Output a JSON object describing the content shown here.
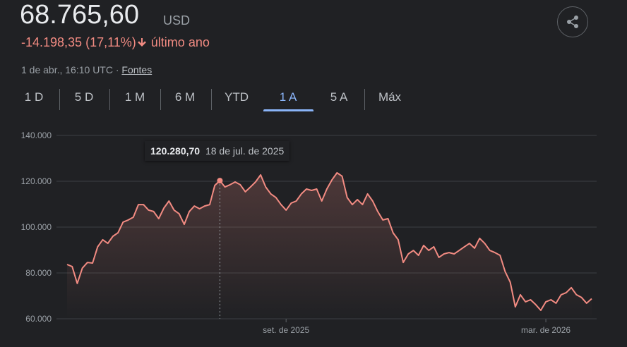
{
  "header": {
    "price": "68.765,60",
    "currency": "USD",
    "change": "-14.198,35 (17,11%)",
    "period": "último ano",
    "timestamp": "1 de abr., 16:10 UTC · ",
    "sources": "Fontes"
  },
  "tabs": {
    "items": [
      "1 D",
      "5 D",
      "1 M",
      "6 M",
      "YTD",
      "1 A",
      "5 A",
      "Máx"
    ],
    "active": "1 A"
  },
  "chart_data": {
    "type": "line",
    "color": "#f28b82",
    "grid": true,
    "annotation": "18 de jul. de 2025",
    "categories": [
      null,
      null,
      null,
      null,
      null,
      null,
      null,
      null,
      null,
      null,
      null,
      null,
      null,
      null,
      null,
      null,
      null,
      null,
      null,
      null,
      null,
      null,
      null,
      null,
      null,
      null,
      null,
      null,
      null,
      null,
      null,
      null,
      null,
      null,
      null,
      null,
      null,
      null,
      null,
      null,
      null,
      null,
      null,
      "set. de 2025",
      null,
      null,
      null,
      null,
      null,
      null,
      null,
      null,
      null,
      null,
      null,
      null,
      null,
      null,
      null,
      null,
      null,
      null,
      null,
      null,
      null,
      null,
      null,
      null,
      null,
      null,
      null,
      null,
      null,
      null,
      null,
      null,
      null,
      null,
      null,
      null,
      null,
      null,
      null,
      null,
      null,
      null,
      null,
      null,
      null,
      null,
      null,
      null,
      null,
      null,
      "mar. de 2026",
      null,
      null,
      null,
      null,
      null,
      null,
      null,
      null,
      null
    ],
    "values": [
      83700,
      82800,
      75400,
      82100,
      84600,
      84300,
      91400,
      94500,
      92900,
      96000,
      97500,
      102200,
      103100,
      104300,
      109800,
      109800,
      107400,
      106800,
      103700,
      108300,
      111400,
      107400,
      105800,
      101200,
      106800,
      109200,
      108000,
      109200,
      109800,
      118200,
      120280.7,
      117500,
      118500,
      119700,
      118500,
      115400,
      117500,
      119700,
      122800,
      117500,
      114500,
      112900,
      109800,
      107400,
      110500,
      111400,
      114500,
      116600,
      116000,
      116600,
      111400,
      116600,
      120600,
      123700,
      122200,
      112900,
      109800,
      112000,
      109800,
      114500,
      111400,
      106800,
      103100,
      103700,
      97500,
      94500,
      84600,
      88300,
      89800,
      87700,
      92000,
      89800,
      91400,
      86800,
      88300,
      88900,
      88300,
      89800,
      91400,
      92900,
      90800,
      95100,
      92900,
      89800,
      88900,
      87700,
      80600,
      76000,
      65200,
      70500,
      67400,
      68300,
      66200,
      63700,
      67400,
      68300,
      66800,
      70500,
      71400,
      73600,
      70500,
      69300,
      66800,
      68765.6
    ],
    "value_labels": [
      null,
      null,
      null,
      null,
      null,
      null,
      null,
      null,
      null,
      null,
      null,
      null,
      null,
      null,
      null,
      null,
      null,
      null,
      null,
      null,
      null,
      null,
      null,
      null,
      null,
      null,
      null,
      null,
      null,
      null,
      "120.280,70",
      null,
      null,
      null,
      null,
      null,
      null,
      null,
      null,
      null,
      null,
      null,
      null,
      null,
      null,
      null,
      null,
      null,
      null,
      null,
      null,
      null,
      null,
      null,
      null,
      null,
      null,
      null,
      null,
      null,
      null,
      null,
      null,
      null,
      null,
      null,
      null,
      null,
      null,
      null,
      null,
      null,
      null,
      null,
      null,
      null,
      null,
      null,
      null,
      null,
      null,
      null,
      null,
      null,
      null,
      null,
      null,
      null,
      null,
      null,
      null,
      null,
      null,
      null,
      null,
      null,
      null,
      null,
      null,
      null,
      null,
      null,
      null,
      null
    ],
    "ylim": [
      60000,
      140000
    ],
    "yticks": [
      {
        "value": 60000,
        "label": "60.000"
      },
      {
        "value": 80000,
        "label": "80.000"
      },
      {
        "value": 100000,
        "label": "100.000"
      },
      {
        "value": 120000,
        "label": "120.000"
      },
      {
        "value": 140000,
        "label": "140.000"
      }
    ]
  }
}
